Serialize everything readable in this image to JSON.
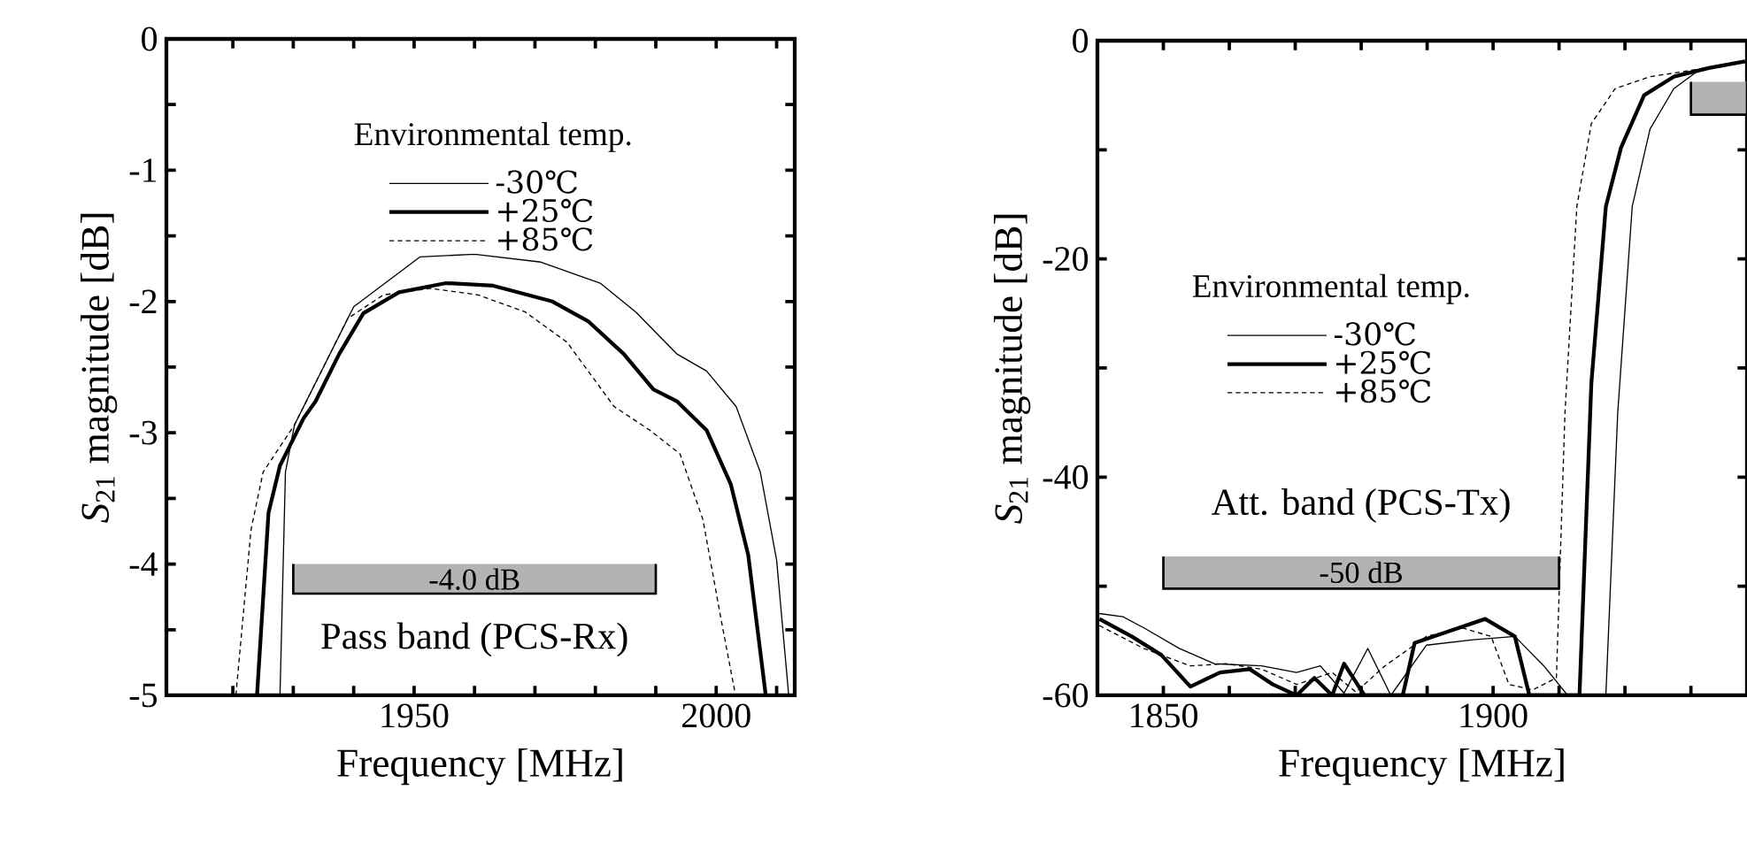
{
  "chart_data": [
    {
      "type": "line",
      "xlabel": "Frequency [MHz]",
      "ylabel": "*S*$_{21}$ magnitude [dB]",
      "legend_title": "Environmental temp.",
      "legend": "top",
      "grid": false,
      "xlim": [
        1909,
        2013
      ],
      "ylim": [
        -5,
        0
      ],
      "xticks": [
        {
          "value": 1920,
          "label": null
        },
        {
          "value": 1930,
          "label": null
        },
        {
          "value": 1940,
          "label": null
        },
        1950,
        {
          "value": 1960,
          "label": null
        },
        {
          "value": 1970,
          "label": null
        },
        {
          "value": 1980,
          "label": null
        },
        {
          "value": 1990,
          "label": null
        },
        2000,
        {
          "value": 2010,
          "label": null
        }
      ],
      "yticks": [
        0,
        {
          "value": -0.5,
          "label": null
        },
        -1,
        {
          "value": -1.5,
          "label": null
        },
        -2,
        {
          "value": -2.5,
          "label": null
        },
        -3,
        {
          "value": -3.5,
          "label": null
        },
        -4,
        {
          "value": -4.5,
          "label": null
        },
        -5
      ],
      "series": [
        {
          "name": "-30℃",
          "color": "#000000",
          "line_style": "solid",
          "x": [
            1927.8,
            1928.7,
            1930.2,
            1940,
            1951,
            1960,
            1971,
            1980.8,
            1986.7,
            1993.5,
            1998.4,
            2003.3,
            2007.3,
            2010,
            2012
          ],
          "values": [
            -5,
            -3.3,
            -2.94,
            -2.04,
            -1.66,
            -1.64,
            -1.7,
            -1.86,
            -2.08,
            -2.4,
            -2.53,
            -2.8,
            -3.3,
            -3.97,
            -5
          ]
        },
        {
          "name": "+25℃",
          "color": "#000000",
          "line_style": "solid",
          "x": [
            1924,
            1925.9,
            1927.8,
            1931.7,
            1933.7,
            1937.6,
            1941.6,
            1947.5,
            1955.3,
            1963.1,
            1972.9,
            1978.8,
            1984.7,
            1989.6,
            1993.5,
            1998.4,
            2002.4,
            2005.3,
            2008.2
          ],
          "values": [
            -5,
            -3.61,
            -3.25,
            -2.89,
            -2.76,
            -2.4,
            -2.09,
            -1.93,
            -1.86,
            -1.88,
            -2.0,
            -2.15,
            -2.4,
            -2.67,
            -2.76,
            -2.98,
            -3.39,
            -3.93,
            -5
          ]
        },
        {
          "name": "+85℃",
          "color": "#000000",
          "line_style": "dashed",
          "x": [
            1920.5,
            1923,
            1925,
            1930.2,
            1935.1,
            1939,
            1944.9,
            1952.7,
            1960.6,
            1968.4,
            1975.3,
            1983.1,
            1989,
            1994,
            1997.8,
            2000.8,
            2003.2
          ],
          "values": [
            -5,
            -3.74,
            -3.3,
            -2.94,
            -2.49,
            -2.13,
            -1.95,
            -1.9,
            -1.95,
            -2.08,
            -2.31,
            -2.8,
            -2.98,
            -3.16,
            -3.66,
            -4.42,
            -5
          ]
        }
      ],
      "bands": [
        {
          "axis": "x",
          "from": 1930,
          "to": 1990,
          "label": "-4.0 dB",
          "color": "#b3b3b3"
        }
      ],
      "annotations": [
        "Pass band (PCS-Rx)"
      ]
    },
    {
      "type": "line",
      "xlabel": "Frequency [MHz]",
      "ylabel": "*S*$_{21}$ magnitude [dB]",
      "legend_title": "Environmental temp.",
      "legend": "left",
      "grid": false,
      "xlim": [
        1840,
        1938.5
      ],
      "ylim": [
        -60,
        0
      ],
      "xticks": [
        1850,
        {
          "value": 1860,
          "label": null
        },
        {
          "value": 1870,
          "label": null
        },
        {
          "value": 1880,
          "label": null
        },
        {
          "value": 1890,
          "label": null
        },
        1900,
        {
          "value": 1910,
          "label": null
        },
        {
          "value": 1920,
          "label": null
        },
        {
          "value": 1930,
          "label": null
        }
      ],
      "yticks": [
        0,
        {
          "value": -10,
          "label": null
        },
        -20,
        {
          "value": -30,
          "label": null
        },
        -40,
        {
          "value": -50,
          "label": null
        },
        -60
      ],
      "series": [
        {
          "name": "-30℃",
          "color": "#000000",
          "line_style": "solid",
          "x": [
            1840.3,
            1843.9,
            1847,
            1852.4,
            1857.7,
            1864.9,
            1870.2,
            1873.8,
            1877.4,
            1881,
            1884.5,
            1889.9,
            1897,
            1903.3,
            1907.7,
            1911.3,
            1917.1,
            1918.9,
            1921.1,
            1923.8,
            1927.4,
            1931,
            1938.2
          ],
          "values": [
            -52.5,
            -52.8,
            -53.8,
            -55.7,
            -57.1,
            -57.3,
            -57.9,
            -57.3,
            -59.8,
            -55.7,
            -60,
            -55.4,
            -54.9,
            -54.6,
            -57.3,
            -60,
            -60,
            -34.1,
            -15.2,
            -8.1,
            -4.4,
            -2.8,
            -1.9
          ]
        },
        {
          "name": "+25℃",
          "color": "#000000",
          "line_style": "solid",
          "x": [
            1840.3,
            1845.2,
            1849.7,
            1854.1,
            1858.6,
            1863.1,
            1866.6,
            1870.2,
            1872.9,
            1875.6,
            1877.4,
            1880.5,
            1886.3,
            1888.1,
            1893.4,
            1898.8,
            1903.3,
            1905.5,
            1913.1,
            1914.9,
            1917.1,
            1919.4,
            1922.9,
            1927.4,
            1932.7,
            1938.2
          ],
          "values": [
            -53.0,
            -54.6,
            -56.3,
            -59.2,
            -57.9,
            -57.6,
            -59.0,
            -60,
            -58.4,
            -60,
            -57.1,
            -60,
            -60,
            -55.2,
            -54.1,
            -53.0,
            -54.6,
            -60,
            -60,
            -31.4,
            -15.2,
            -9.8,
            -5.0,
            -3.3,
            -2.5,
            -1.9
          ]
        },
        {
          "name": "+85℃",
          "color": "#000000",
          "line_style": "dashed",
          "x": [
            1840.3,
            1847,
            1854.1,
            1859.5,
            1864.9,
            1870.2,
            1875.6,
            1879.2,
            1883.6,
            1889.9,
            1895.2,
            1899.7,
            1902.4,
            1906,
            1909.6,
            1910.9,
            1912.7,
            1914.9,
            1918.5,
            1923.8,
            1929.2,
            1938.2
          ],
          "values": [
            -53.6,
            -55.7,
            -57.3,
            -57.1,
            -57.6,
            -59,
            -57.9,
            -59.7,
            -57.3,
            -54.6,
            -53.8,
            -54.6,
            -59,
            -59.5,
            -58.4,
            -34.1,
            -15.2,
            -7.6,
            -4.4,
            -3.3,
            -2.8,
            -1.9
          ]
        }
      ],
      "bands": [
        {
          "axis": "x",
          "from": 1850,
          "to": 1910,
          "label": "-50 dB",
          "color": "#b3b3b3"
        },
        {
          "axis": "x",
          "from": 1930,
          "to": 1938.5,
          "color": "#b3b3b3"
        }
      ],
      "annotations": [
        "Att. band (PCS-Tx)"
      ]
    }
  ]
}
